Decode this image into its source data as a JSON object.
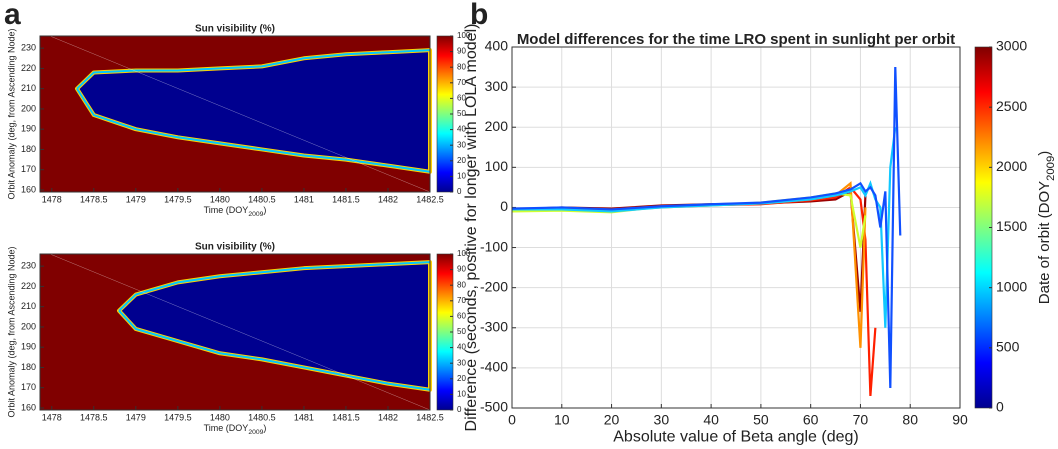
{
  "panel_labels": [
    "a",
    "b"
  ],
  "chart_data": [
    {
      "type": "heatmap",
      "title": "Sun visibility (%)",
      "ylabel": "Orbit Anomaly (deg, from Ascending Node)",
      "xlabel": [
        "Time (DOY",
        "2009",
        ")"
      ],
      "xlim": [
        1477.86,
        1482.5
      ],
      "xticks": [
        1478,
        1478.5,
        1479,
        1479.5,
        1480,
        1480.5,
        1481,
        1481.5,
        1482,
        1482.5
      ],
      "ylim": [
        159,
        236
      ],
      "yticks": [
        160,
        170,
        180,
        190,
        200,
        210,
        220,
        230
      ],
      "x": [
        1478.3,
        1478.5,
        1479,
        1479.5,
        1480,
        1480.5,
        1481,
        1481.5,
        1482,
        1482.5
      ],
      "series": [
        {
          "color": "#00008f",
          "values": [
            210,
            218,
            219,
            219,
            220,
            221,
            225,
            227,
            228,
            229
          ]
        },
        {
          "color": "#00008f",
          "values": [
            210,
            197,
            190,
            186,
            183,
            180,
            177,
            175,
            172,
            169
          ]
        }
      ],
      "colorbar": {
        "lim": [
          0,
          100
        ],
        "ticks": [
          0,
          10,
          20,
          30,
          40,
          50,
          60,
          70,
          80,
          90,
          100
        ]
      }
    },
    {
      "type": "heatmap",
      "title": "Sun visibility (%)",
      "ylabel": "Orbit Anomaly (deg, from Ascending Node)",
      "xlabel": [
        "Time (DOY",
        "2009",
        ")"
      ],
      "xlim": [
        1477.86,
        1482.5
      ],
      "xticks": [
        1478,
        1478.5,
        1479,
        1479.5,
        1480,
        1480.5,
        1481,
        1481.5,
        1482,
        1482.5
      ],
      "ylim": [
        159,
        236
      ],
      "yticks": [
        160,
        170,
        180,
        190,
        200,
        210,
        220,
        230
      ],
      "x": [
        1478.8,
        1479,
        1479.5,
        1480,
        1480.5,
        1481,
        1481.5,
        1482,
        1482.5
      ],
      "series": [
        {
          "color": "#00008f",
          "values": [
            208,
            216,
            222,
            225,
            227,
            229,
            230,
            231,
            232
          ]
        },
        {
          "color": "#00008f",
          "values": [
            208,
            199,
            193,
            187,
            184,
            180,
            176,
            172,
            169
          ]
        }
      ],
      "colorbar": {
        "lim": [
          0,
          100
        ],
        "ticks": [
          0,
          10,
          20,
          30,
          40,
          50,
          60,
          70,
          80,
          90,
          100
        ]
      }
    },
    {
      "type": "line",
      "title": "Model differences for the time LRO spent in sunlight per orbit",
      "xlabel": "Absolute value of Beta angle (deg)",
      "ylabel": "Difference (seconds, positive for longer with LOLA model)",
      "xlim": [
        0,
        90
      ],
      "xticks": [
        0,
        10,
        20,
        30,
        40,
        50,
        60,
        70,
        80,
        90
      ],
      "ylim": [
        -500,
        400
      ],
      "yticks": [
        -500,
        -400,
        -300,
        -200,
        -100,
        0,
        100,
        200,
        300,
        400
      ],
      "grid": true,
      "x": [
        0,
        10,
        20,
        30,
        40,
        50,
        60,
        65,
        68,
        70,
        71,
        72,
        73,
        74,
        75,
        76,
        77,
        78
      ],
      "series": [
        {
          "color": "#9b0000",
          "values": [
            -5,
            0,
            -3,
            5,
            8,
            10,
            15,
            20,
            40,
            -260,
            30,
            null,
            null,
            null,
            null,
            null,
            null,
            null
          ]
        },
        {
          "color": "#ff2000",
          "values": [
            -8,
            -2,
            -5,
            3,
            6,
            8,
            18,
            25,
            50,
            20,
            -80,
            -470,
            -300,
            null,
            null,
            null,
            null,
            null
          ]
        },
        {
          "color": "#ff9000",
          "values": [
            -3,
            -5,
            -8,
            0,
            5,
            10,
            20,
            30,
            60,
            -350,
            0,
            null,
            null,
            null,
            null,
            null,
            null,
            null
          ]
        },
        {
          "color": "#d0ff30",
          "values": [
            -10,
            -8,
            -12,
            2,
            5,
            12,
            25,
            35,
            30,
            -100,
            -20,
            null,
            null,
            null,
            null,
            null,
            null,
            null
          ]
        },
        {
          "color": "#10c8ff",
          "values": [
            -5,
            -5,
            -10,
            0,
            5,
            10,
            20,
            30,
            40,
            50,
            30,
            60,
            20,
            0,
            -300,
            100,
            200,
            null
          ]
        },
        {
          "color": "#1050ff",
          "values": [
            -3,
            0,
            -5,
            3,
            8,
            12,
            25,
            35,
            45,
            60,
            40,
            50,
            30,
            -50,
            40,
            -450,
            350,
            -70
          ]
        }
      ],
      "colorbar": {
        "lim": [
          0,
          3000
        ],
        "ticks": [
          0,
          500,
          1000,
          1500,
          2000,
          2500,
          3000
        ],
        "label": [
          "Date of orbit (DOY",
          "2009",
          ")"
        ]
      }
    }
  ]
}
